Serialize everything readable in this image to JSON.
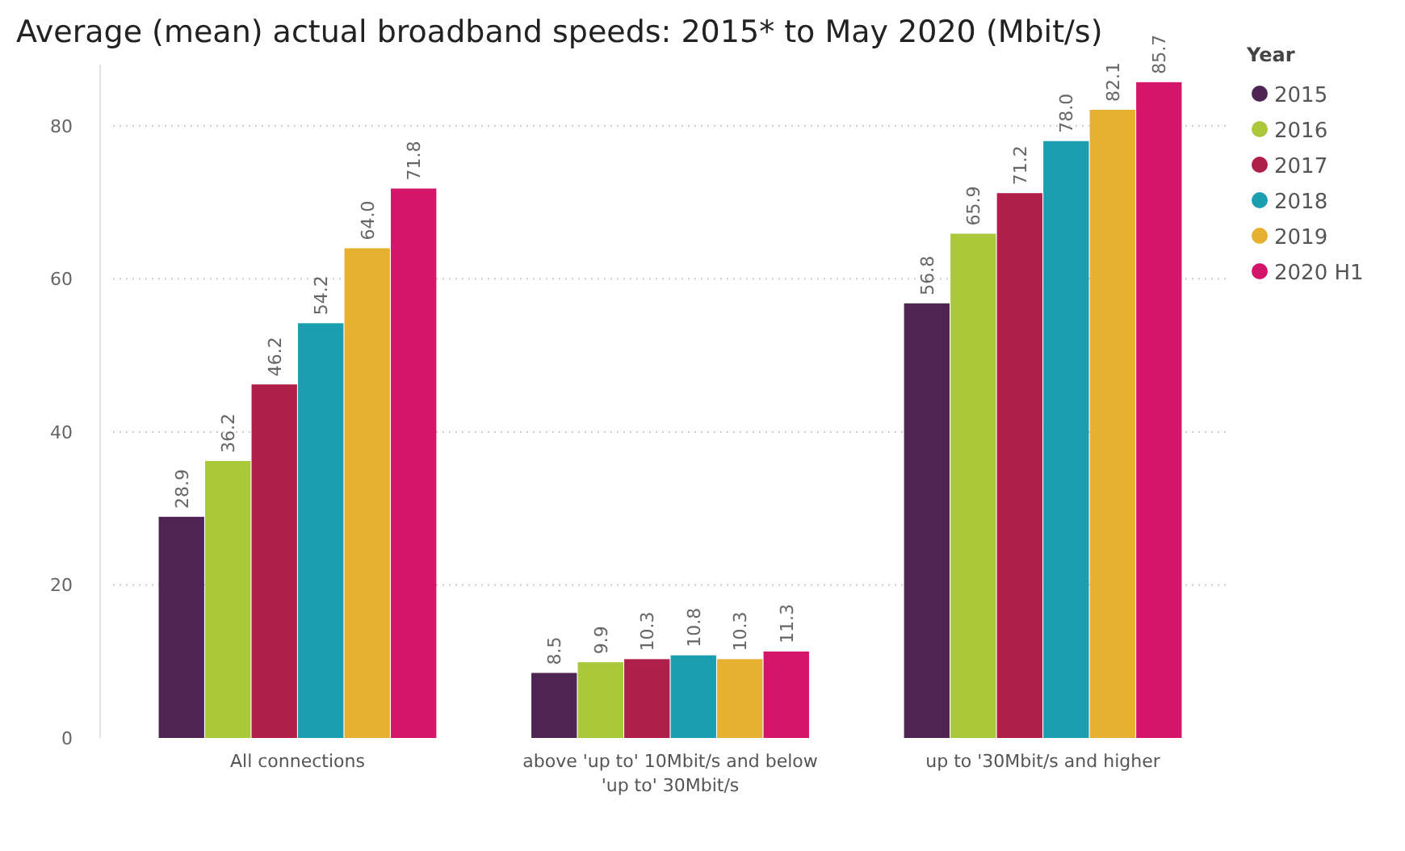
{
  "chart_data": {
    "type": "bar",
    "title": "Average (mean) actual broadband speeds: 2015* to May 2020 (Mbit/s)",
    "legend_title": "Year",
    "categories": [
      "All connections",
      "above 'up to' 10Mbit/s and below 'up to' 30Mbit/s",
      "up to '30Mbit/s and higher"
    ],
    "series": [
      {
        "name": "2015",
        "color": "#4f2453",
        "values": [
          28.9,
          8.5,
          56.8
        ]
      },
      {
        "name": "2016",
        "color": "#a9c93b",
        "values": [
          36.2,
          9.9,
          65.9
        ]
      },
      {
        "name": "2017",
        "color": "#b01f4a",
        "values": [
          46.2,
          10.3,
          71.2
        ]
      },
      {
        "name": "2018",
        "color": "#1b9fb0",
        "values": [
          54.2,
          10.8,
          78.0
        ]
      },
      {
        "name": "2019",
        "color": "#e8b030",
        "values": [
          64.0,
          10.3,
          82.1
        ]
      },
      {
        "name": "2020 H1",
        "color": "#d4156a",
        "values": [
          71.8,
          11.3,
          85.7
        ]
      }
    ],
    "value_labels": [
      "28.9",
      "36.2",
      "46.2",
      "54.2",
      "64.0",
      "71.8",
      "8.5",
      "9.9",
      "10.3",
      "10.8",
      "10.3",
      "11.3",
      "56.8",
      "65.9",
      "71.2",
      "78.0",
      "82.1",
      "85.7"
    ],
    "ylim": [
      0,
      88
    ],
    "yticks": [
      0,
      20,
      40,
      60,
      80
    ],
    "grid": "y",
    "legend": "top right",
    "marker": "circle"
  }
}
